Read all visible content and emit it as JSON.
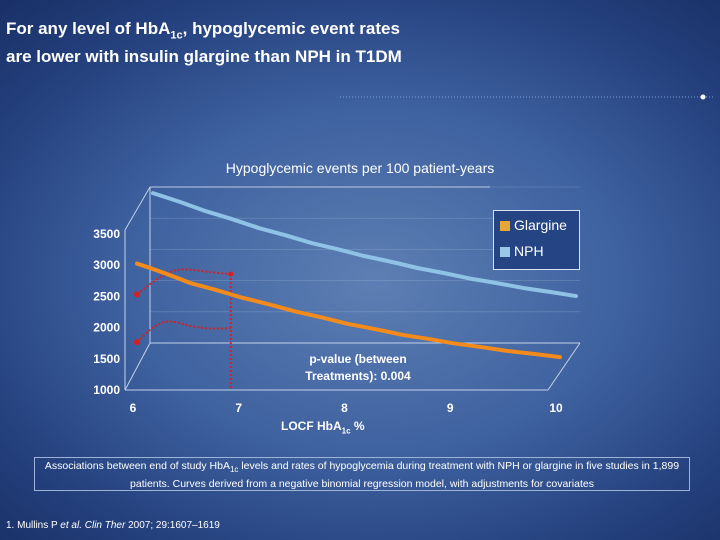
{
  "slide": {
    "title_line1_a": "For any level of Hb",
    "title_line1_b": "A",
    "title_line1_sub": "1c",
    "title_line1_c": ", hypoglycemic event rates",
    "title_line2": "are lower with insulin glargine than NPH in T1DM",
    "caption_a": "Associations between end of study HbA",
    "caption_sub": "1c",
    "caption_b": " levels and rates of hypoglycemia during treatment with NPH or glargine in five studies in 1,899 patients. Curves derived from a negative binomial regression model, with adjustments for covariates",
    "reference_a": "1. Mullins P ",
    "reference_italic": "et al. Clin Ther",
    "reference_b": " 2007; 29:1607–1619"
  },
  "colors": {
    "glargine": "#e8a735",
    "nph": "#9cc8e8",
    "nph_line": "#8ec3e6",
    "glargine_line": "#f28a1c",
    "marker": "#d81f1f"
  },
  "chart_data": {
    "type": "line",
    "title": "Hypoglycemic events per 100 patient-years",
    "xlabel_a": "LOCF HbA",
    "xlabel_sub": "1c",
    "xlabel_b": " %",
    "ylabel": "",
    "x_ticks": [
      "6",
      "7",
      "8",
      "9",
      "10"
    ],
    "y_ticks": [
      "1000",
      "1500",
      "2000",
      "2500",
      "3000",
      "3500"
    ],
    "xlim": [
      6,
      10
    ],
    "ylim": [
      1000,
      3500
    ],
    "legend": [
      {
        "name": "Glargine",
        "color_key": "glargine"
      },
      {
        "name": "NPH",
        "color_key": "nph"
      }
    ],
    "legend_position": "top-right",
    "annotation_line1": "p-value (between",
    "annotation_line2": "Treatments): 0.004",
    "series": [
      {
        "name": "NPH",
        "x": [
          6.0,
          6.5,
          7.0,
          7.5,
          8.0,
          8.5,
          9.0,
          9.5,
          10.0
        ],
        "values": [
          3450,
          3160,
          2890,
          2650,
          2440,
          2250,
          2080,
          1930,
          1800
        ]
      },
      {
        "name": "Glargine",
        "x": [
          6.0,
          6.5,
          7.0,
          7.5,
          8.0,
          8.5,
          9.0,
          9.5,
          10.0
        ],
        "values": [
          2770,
          2460,
          2220,
          2000,
          1800,
          1630,
          1490,
          1370,
          1270
        ]
      }
    ],
    "highlight": {
      "x": 7.0,
      "nph_at_x": 2890,
      "glargine_at_x": 2220
    }
  }
}
